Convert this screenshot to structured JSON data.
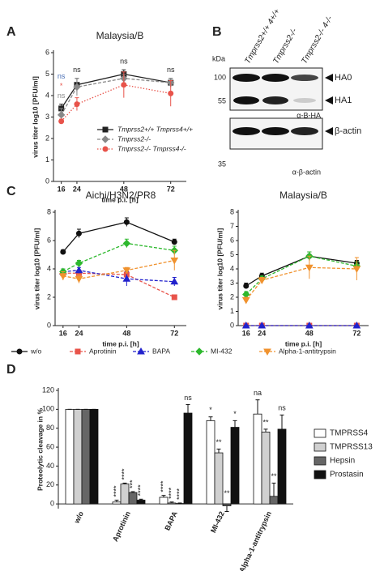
{
  "chart_data": [
    {
      "panel": "A",
      "type": "line",
      "title": "Malaysia/B",
      "xlabel": "time p.i. [h]",
      "ylabel": "virus titer log10 [PFU/ml]",
      "x": [
        16,
        24,
        48,
        72
      ],
      "xlim": [
        12,
        80
      ],
      "xticks": [
        16,
        24,
        48,
        72
      ],
      "ylim": [
        0,
        6
      ],
      "yticks": [
        0,
        1,
        2,
        3,
        4,
        5,
        6
      ],
      "series": [
        {
          "name": "Tmprss2+/+ Tmprss4+/+",
          "color": "#222222",
          "marker": "square",
          "dash": "solid",
          "values": [
            3.4,
            4.5,
            5.0,
            4.6
          ],
          "errors": [
            0.2,
            0.3,
            0.2,
            0.2
          ]
        },
        {
          "name": "Tmprss2-/-",
          "color": "#888888",
          "marker": "diamond",
          "dash": "dashed",
          "values": [
            3.1,
            4.4,
            4.8,
            4.6
          ],
          "errors": [
            0.3,
            0.4,
            0.2,
            0.2
          ]
        },
        {
          "name": "Tmprss2-/- Tmprss4-/-",
          "color": "#e8534a",
          "marker": "circle",
          "dash": "dotted",
          "values": [
            2.8,
            3.6,
            4.5,
            4.1
          ],
          "errors": [
            0.1,
            0.3,
            0.6,
            0.6
          ]
        }
      ],
      "annotations": [
        [
          {
            "text": "ns",
            "color": "#4a6fb5"
          },
          {
            "text": "*",
            "color": "#e8534a"
          },
          {
            "text": "ns",
            "color": "#888888"
          }
        ],
        [
          {
            "text": "ns",
            "color": "#222222"
          }
        ],
        [
          {
            "text": "ns",
            "color": "#222222"
          }
        ],
        [
          {
            "text": "ns",
            "color": "#222222"
          }
        ]
      ]
    },
    {
      "panel": "C",
      "type": "line",
      "title": "Aichi/H3N2/PR8",
      "xlabel": "time p.i. [h]",
      "ylabel": "virus titer log10 [PFU/ml]",
      "x": [
        16,
        24,
        48,
        72
      ],
      "xlim": [
        12,
        78
      ],
      "xticks": [
        16,
        24,
        48,
        72
      ],
      "ylim": [
        0,
        8
      ],
      "yticks": [
        0,
        2,
        4,
        6,
        8
      ],
      "series": [
        {
          "name": "w/o",
          "color": "#111111",
          "marker": "circle",
          "dash": "solid",
          "values": [
            5.2,
            6.5,
            7.3,
            5.9
          ],
          "errors": [
            0.15,
            0.3,
            0.3,
            0.2
          ]
        },
        {
          "name": "Aprotinin",
          "color": "#e8534a",
          "marker": "square",
          "dash": "dashed",
          "values": [
            3.7,
            3.7,
            3.6,
            2.0
          ],
          "errors": [
            0.2,
            0.2,
            0.2,
            0.15
          ]
        },
        {
          "name": "BAPA",
          "color": "#2222cc",
          "marker": "triangle",
          "dash": "dashed",
          "values": [
            3.8,
            3.9,
            3.3,
            3.1
          ],
          "errors": [
            0.2,
            0.2,
            0.5,
            0.3
          ]
        },
        {
          "name": "MI-432",
          "color": "#2db82d",
          "marker": "diamond",
          "dash": "dashed",
          "values": [
            3.8,
            4.4,
            5.8,
            5.3
          ],
          "errors": [
            0.2,
            0.2,
            0.3,
            0.3
          ]
        },
        {
          "name": "Alpha-1-antitrypsin",
          "color": "#f0922e",
          "marker": "triangle-down",
          "dash": "dashed",
          "values": [
            3.5,
            3.3,
            3.9,
            4.6
          ],
          "errors": [
            0.3,
            0.3,
            0.2,
            0.7
          ]
        }
      ]
    },
    {
      "type": "line",
      "title": "Malaysia/B",
      "xlabel": "time p.i. [h]",
      "ylabel": "virus titer log10 [PFU/ml]",
      "x": [
        16,
        24,
        48,
        72
      ],
      "xlim": [
        12,
        78
      ],
      "xticks": [
        16,
        24,
        48,
        72
      ],
      "ylim": [
        0,
        8
      ],
      "yticks": [
        0,
        1,
        2,
        3,
        4,
        5,
        6,
        7,
        8
      ],
      "series": [
        {
          "name": "w/o",
          "color": "#111111",
          "marker": "circle",
          "dash": "solid",
          "values": [
            2.8,
            3.5,
            4.9,
            4.4
          ],
          "errors": [
            0.2,
            0.2,
            0.3,
            0.2
          ]
        },
        {
          "name": "Aprotinin",
          "color": "#e8534a",
          "marker": "square",
          "dash": "dashed",
          "values": [
            0,
            0,
            0,
            0
          ],
          "errors": [
            0,
            0,
            0,
            0
          ]
        },
        {
          "name": "BAPA",
          "color": "#2222cc",
          "marker": "triangle",
          "dash": "dashed",
          "values": [
            0,
            0,
            0,
            0
          ],
          "errors": [
            0,
            0,
            0,
            0
          ]
        },
        {
          "name": "MI-432",
          "color": "#2db82d",
          "marker": "diamond",
          "dash": "dashed",
          "values": [
            2.2,
            3.3,
            4.9,
            4.2
          ],
          "errors": [
            0.2,
            0.2,
            0.3,
            0.3
          ]
        },
        {
          "name": "Alpha-1-antitrypsin",
          "color": "#f0922e",
          "marker": "triangle-down",
          "dash": "dashed",
          "values": [
            1.8,
            3.2,
            4.1,
            4.0
          ],
          "errors": [
            0.2,
            0.2,
            0.8,
            0.8
          ]
        }
      ]
    },
    {
      "panel": "D",
      "type": "bar",
      "ylabel": "Proteolytic cleavage in %",
      "categories": [
        "w/o",
        "Aprotinin",
        "BAPA",
        "MI-432",
        "Alpha-1-antitrypsin"
      ],
      "ylim": [
        -5,
        120
      ],
      "yticks": [
        0,
        20,
        40,
        60,
        80,
        100,
        120
      ],
      "series": [
        {
          "name": "TMPRSS4",
          "color": "#ffffff",
          "values": [
            100,
            2,
            7,
            88,
            95
          ],
          "errors": [
            0,
            2,
            2,
            4,
            15
          ],
          "annotations": [
            null,
            "****",
            "****",
            "*",
            "na"
          ]
        },
        {
          "name": "TMPRSS13",
          "color": "#d0d0d0",
          "values": [
            100,
            21,
            1,
            54,
            76
          ],
          "errors": [
            0,
            1,
            1,
            4,
            3
          ],
          "annotations": [
            null,
            "****",
            "****",
            "**",
            "**"
          ]
        },
        {
          "name": "Hepsin",
          "color": "#666666",
          "values": [
            100,
            12,
            0.5,
            -2,
            8
          ],
          "errors": [
            0,
            1,
            0.5,
            6,
            14
          ],
          "annotations": [
            null,
            "***",
            "****",
            "**",
            "**"
          ]
        },
        {
          "name": "Prostasin",
          "color": "#111111",
          "values": [
            100,
            4,
            96,
            81,
            79
          ],
          "errors": [
            0,
            1,
            9,
            7,
            15
          ],
          "annotations": [
            null,
            "****",
            "ns",
            "*",
            "ns"
          ]
        }
      ]
    }
  ],
  "blot": {
    "panel": "B",
    "lanes": [
      "Tmprss2+/+ 4+/+",
      "Tmprss2-/-",
      "Tmprss2-/- 4-/-"
    ],
    "unit": "kDa",
    "markers": [
      "100",
      "55",
      "35"
    ],
    "bands": [
      "HA0",
      "HA1",
      "β-actin"
    ],
    "antibodies": [
      "α-B-HA",
      "α-β-actin"
    ]
  }
}
